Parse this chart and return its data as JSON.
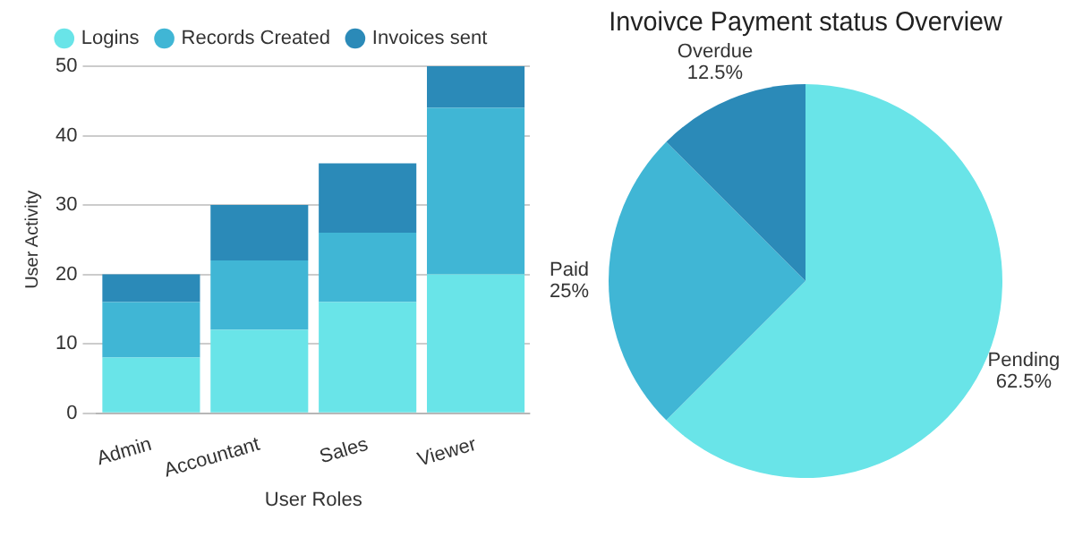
{
  "chart_data": [
    {
      "type": "bar",
      "xlabel": "User Roles",
      "ylabel": "User Activity",
      "categories": [
        "Admin",
        "Accountant",
        "Sales",
        "Viewer"
      ],
      "stacked": true,
      "series": [
        {
          "name": "Logins",
          "color": "#69e4e8",
          "values": [
            8,
            12,
            16,
            20
          ]
        },
        {
          "name": "Records Created",
          "color": "#40b6d5",
          "values": [
            8,
            10,
            10,
            24
          ]
        },
        {
          "name": "Invoices sent",
          "color": "#2b8ab8",
          "values": [
            4,
            8,
            10,
            6
          ]
        }
      ],
      "ylim": [
        0,
        50
      ],
      "yticks": [
        0,
        10,
        20,
        30,
        40,
        50
      ],
      "grid": "y",
      "legend": "top"
    },
    {
      "type": "pie",
      "title": "Invoivce Payment status Overview",
      "categories": [
        "Pending",
        "Paid",
        "Overdue"
      ],
      "values": [
        62.5,
        25,
        12.5
      ],
      "colors": [
        "#69e4e8",
        "#40b6d5",
        "#2b8ab8"
      ],
      "value_labels": [
        "62.5%",
        "25%",
        "12.5%"
      ]
    }
  ]
}
